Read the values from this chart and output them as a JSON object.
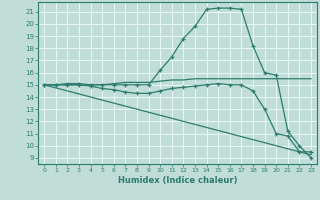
{
  "xlabel": "Humidex (Indice chaleur)",
  "xlim": [
    -0.5,
    23.5
  ],
  "ylim": [
    8.5,
    21.8
  ],
  "yticks": [
    9,
    10,
    11,
    12,
    13,
    14,
    15,
    16,
    17,
    18,
    19,
    20,
    21
  ],
  "xticks": [
    0,
    1,
    2,
    3,
    4,
    5,
    6,
    7,
    8,
    9,
    10,
    11,
    12,
    13,
    14,
    15,
    16,
    17,
    18,
    19,
    20,
    21,
    22,
    23
  ],
  "background_color": "#c0ddd8",
  "grid_color": "#e8f8f5",
  "line_color": "#2d7d6e",
  "lines": [
    {
      "x": [
        0,
        1,
        2,
        3,
        4,
        5,
        6,
        7,
        8,
        9,
        10,
        11,
        12,
        13,
        14,
        15,
        16,
        17,
        18,
        19,
        20,
        21,
        22,
        23
      ],
      "y": [
        15,
        15,
        15.1,
        15.1,
        15,
        15,
        15,
        15,
        15,
        15,
        16.2,
        17.3,
        18.8,
        19.8,
        21.2,
        21.3,
        21.3,
        21.2,
        18.2,
        16,
        15.8,
        11.2,
        10.0,
        9.0
      ],
      "style": "solid_marker"
    },
    {
      "x": [
        0,
        1,
        2,
        3,
        4,
        5,
        6,
        7,
        8,
        9,
        10,
        11,
        12,
        13,
        14,
        15,
        16,
        17,
        18,
        19,
        20,
        21,
        22,
        23
      ],
      "y": [
        15,
        15,
        15,
        15,
        15,
        15,
        15.1,
        15.2,
        15.2,
        15.2,
        15.3,
        15.4,
        15.4,
        15.5,
        15.5,
        15.5,
        15.5,
        15.5,
        15.5,
        15.5,
        15.5,
        15.5,
        15.5,
        15.5
      ],
      "style": "solid"
    },
    {
      "x": [
        0,
        1,
        2,
        3,
        4,
        5,
        6,
        7,
        8,
        9,
        10,
        11,
        12,
        13,
        14,
        15,
        16,
        17,
        18,
        19,
        20,
        21,
        22,
        23
      ],
      "y": [
        15,
        15,
        15,
        15,
        14.9,
        14.7,
        14.6,
        14.4,
        14.3,
        14.3,
        14.5,
        14.7,
        14.8,
        14.9,
        15.0,
        15.1,
        15.0,
        15.0,
        14.5,
        13.0,
        11.0,
        10.8,
        9.5,
        9.5
      ],
      "style": "solid_marker"
    },
    {
      "x": [
        0,
        1,
        2,
        3,
        4,
        5,
        6,
        7,
        8,
        9,
        10,
        11,
        12,
        13,
        14,
        15,
        16,
        17,
        18,
        19,
        20,
        21,
        22,
        23
      ],
      "y": [
        15,
        14.75,
        14.5,
        14.25,
        14.0,
        13.75,
        13.5,
        13.25,
        13.0,
        12.75,
        12.5,
        12.25,
        12.0,
        11.75,
        11.5,
        11.25,
        11.0,
        10.75,
        10.5,
        10.25,
        10.0,
        9.75,
        9.5,
        9.25
      ],
      "style": "solid"
    }
  ]
}
